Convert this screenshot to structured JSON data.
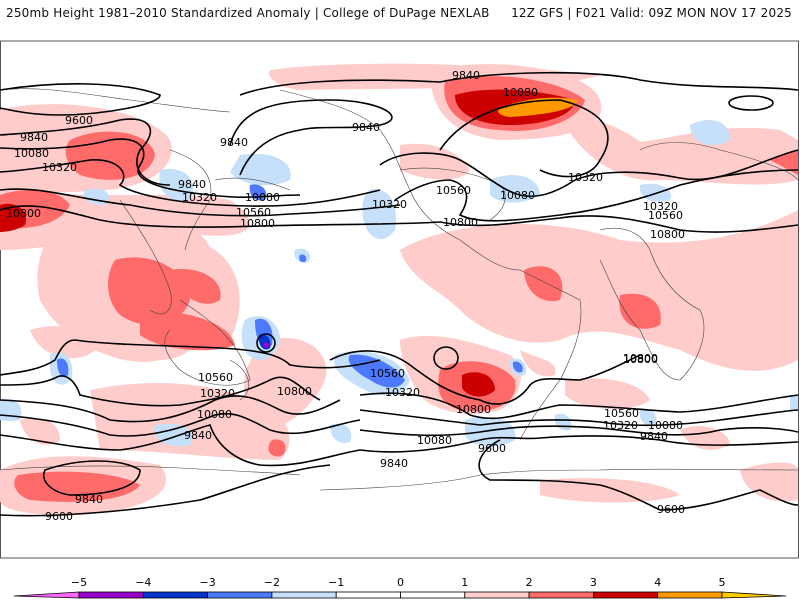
{
  "header": {
    "title_left": "250mb Height 1981–2010 Standardized Anomaly | College of DuPage NEXLAB",
    "title_right": "12Z GFS | F021 Valid: 09Z MON NOV 17 2025"
  },
  "colorbar": {
    "ticks": [
      "−5",
      "−4",
      "−3",
      "−2",
      "−1",
      "0",
      "1",
      "2",
      "3",
      "4",
      "5"
    ],
    "bins": [
      {
        "range": "<-5",
        "color": "#ff66ff"
      },
      {
        "range": "-5 to -4",
        "color": "#9900cc"
      },
      {
        "range": "-4 to -3",
        "color": "#0033cc"
      },
      {
        "range": "-3 to -2",
        "color": "#4d79ff"
      },
      {
        "range": "-2 to -1",
        "color": "#c6e0fa"
      },
      {
        "range": "-1 to 0",
        "color": "#ffffff"
      },
      {
        "range": "0 to 1",
        "color": "#ffffff"
      },
      {
        "range": "1 to 2",
        "color": "#ffcccc"
      },
      {
        "range": "2 to 3",
        "color": "#ff6b6b"
      },
      {
        "range": "3 to 4",
        "color": "#cc0000"
      },
      {
        "range": "4 to 5",
        "color": "#ff9900"
      },
      {
        "range": ">5",
        "color": "#ffcc00"
      }
    ]
  },
  "contour_labels": [
    {
      "text": "9600",
      "id": "c9600-nw"
    },
    {
      "text": "9840",
      "id": "c9840-w1"
    },
    {
      "text": "10080",
      "id": "c10080-w1"
    },
    {
      "text": "10320",
      "id": "c10320-w1"
    },
    {
      "text": "10800",
      "id": "c10800-w1"
    },
    {
      "text": "9840",
      "id": "c9840-npac1"
    },
    {
      "text": "9840",
      "id": "c9840-npac2"
    },
    {
      "text": "10320",
      "id": "c10320-npac"
    },
    {
      "text": "10080",
      "id": "c10080-npac"
    },
    {
      "text": "10560",
      "id": "c10560-npac"
    },
    {
      "text": "10800",
      "id": "c10800-npac"
    },
    {
      "text": "9840",
      "id": "c9840-arctic"
    },
    {
      "text": "9840",
      "id": "c9840-alaska"
    },
    {
      "text": "10080",
      "id": "c10080-canada"
    },
    {
      "text": "10320",
      "id": "c10320-westus"
    },
    {
      "text": "10560",
      "id": "c10560-us"
    },
    {
      "text": "10080",
      "id": "c10080-ne-us"
    },
    {
      "text": "10800",
      "id": "c10800-us"
    },
    {
      "text": "10320",
      "id": "c10320-atl"
    },
    {
      "text": "10320",
      "id": "c10320-iberia"
    },
    {
      "text": "10560",
      "id": "c10560-iberia"
    },
    {
      "text": "10800",
      "id": "c10800-africa"
    },
    {
      "text": "10800",
      "id": "c10800-sio"
    },
    {
      "text": "10560",
      "id": "c10560-sw"
    },
    {
      "text": "10320",
      "id": "c10320-sw"
    },
    {
      "text": "10080",
      "id": "c10080-sw"
    },
    {
      "text": "10800",
      "id": "c10800-nz"
    },
    {
      "text": "9840",
      "id": "c9840-sw"
    },
    {
      "text": "9840",
      "id": "c9840-ant"
    },
    {
      "text": "9600",
      "id": "c9600-ant"
    },
    {
      "text": "10560",
      "id": "c10560-spac"
    },
    {
      "text": "10320",
      "id": "c10320-spac"
    },
    {
      "text": "10800",
      "id": "c10800-spac"
    },
    {
      "text": "10080",
      "id": "c10080-spac"
    },
    {
      "text": "9840",
      "id": "c9840-spac"
    },
    {
      "text": "9600",
      "id": "c9600-drake"
    },
    {
      "text": "10800",
      "id": "c10800-satl"
    },
    {
      "text": "10560",
      "id": "c10560-satl"
    },
    {
      "text": "10320",
      "id": "c10320-satl"
    },
    {
      "text": "10080",
      "id": "c10080-satl"
    },
    {
      "text": "9840",
      "id": "c9840-satl"
    },
    {
      "text": "9600",
      "id": "c9600-satl"
    }
  ]
}
